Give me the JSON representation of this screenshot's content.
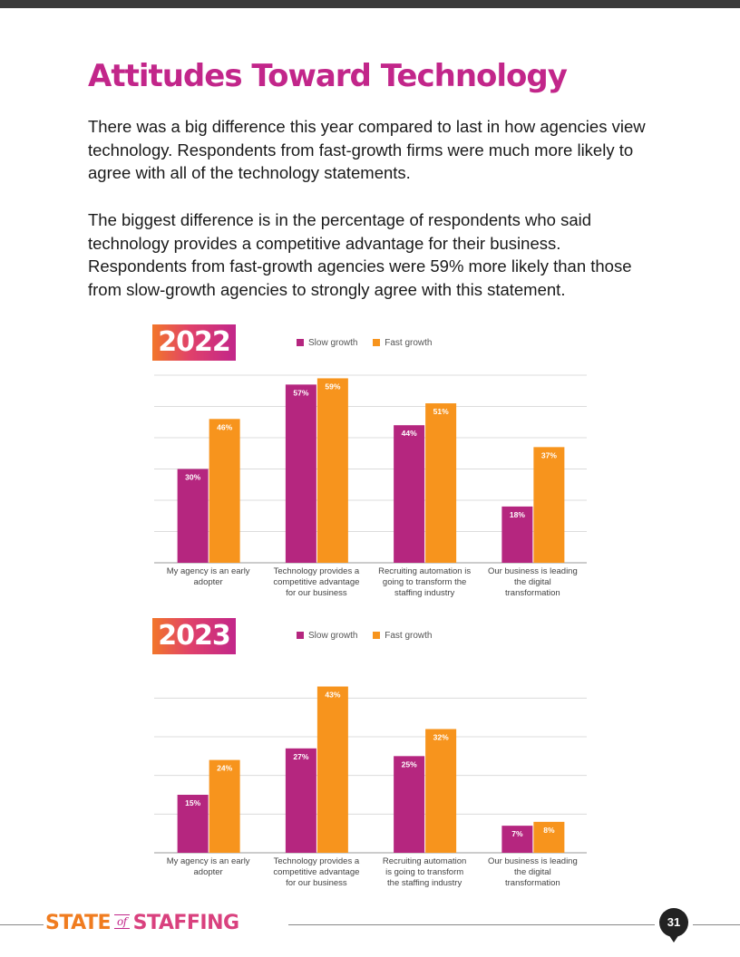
{
  "page": {
    "title": "Attitudes Toward Technology",
    "paragraph1": "There was a big difference this year compared to last in how agencies view technology. Respondents from fast-growth firms were much more likely to agree with all of the technology statements.",
    "paragraph2": "The biggest difference is in the percentage of respondents who said technology provides a competitive advantage for their business. Respondents from fast-growth agencies were 59% more likely than those from slow-growth agencies to strongly agree with this statement."
  },
  "colors": {
    "slow": "#b5267f",
    "fast": "#f7941d",
    "title": "#c2268a"
  },
  "chart_data": [
    {
      "type": "bar",
      "title": "2022",
      "categories": [
        [
          "My agency is an early",
          "adopter"
        ],
        [
          "Technology provides a",
          "competitive advantage",
          "for our business"
        ],
        [
          "Recruiting automation is",
          "going to transform the",
          "staffing industry"
        ],
        [
          "Our business is leading",
          "the digital",
          "transformation"
        ]
      ],
      "series": [
        {
          "name": "Slow growth",
          "values": [
            30,
            57,
            44,
            18
          ]
        },
        {
          "name": "Fast growth",
          "values": [
            46,
            59,
            51,
            37
          ]
        }
      ],
      "ylim": [
        0,
        60
      ],
      "grid_step": 10,
      "value_suffix": "%",
      "legend_position": "top"
    },
    {
      "type": "bar",
      "title": "2023",
      "categories": [
        [
          "My agency is an early",
          "adopter"
        ],
        [
          "Technology provides a",
          "competitive advantage",
          "for our business"
        ],
        [
          "Recruiting automation",
          "is going to transform",
          "the staffing industry"
        ],
        [
          "Our business is leading",
          "the digital",
          "transformation"
        ]
      ],
      "series": [
        {
          "name": "Slow growth",
          "values": [
            15,
            27,
            25,
            7
          ]
        },
        {
          "name": "Fast growth",
          "values": [
            24,
            43,
            32,
            8
          ]
        }
      ],
      "ylim": [
        0,
        45
      ],
      "grid_step": 10,
      "value_suffix": "%",
      "legend_position": "top"
    }
  ],
  "footer": {
    "brand_part1": "STATE",
    "brand_of": "of",
    "brand_part2": "STAFFING",
    "page_number": "31"
  }
}
